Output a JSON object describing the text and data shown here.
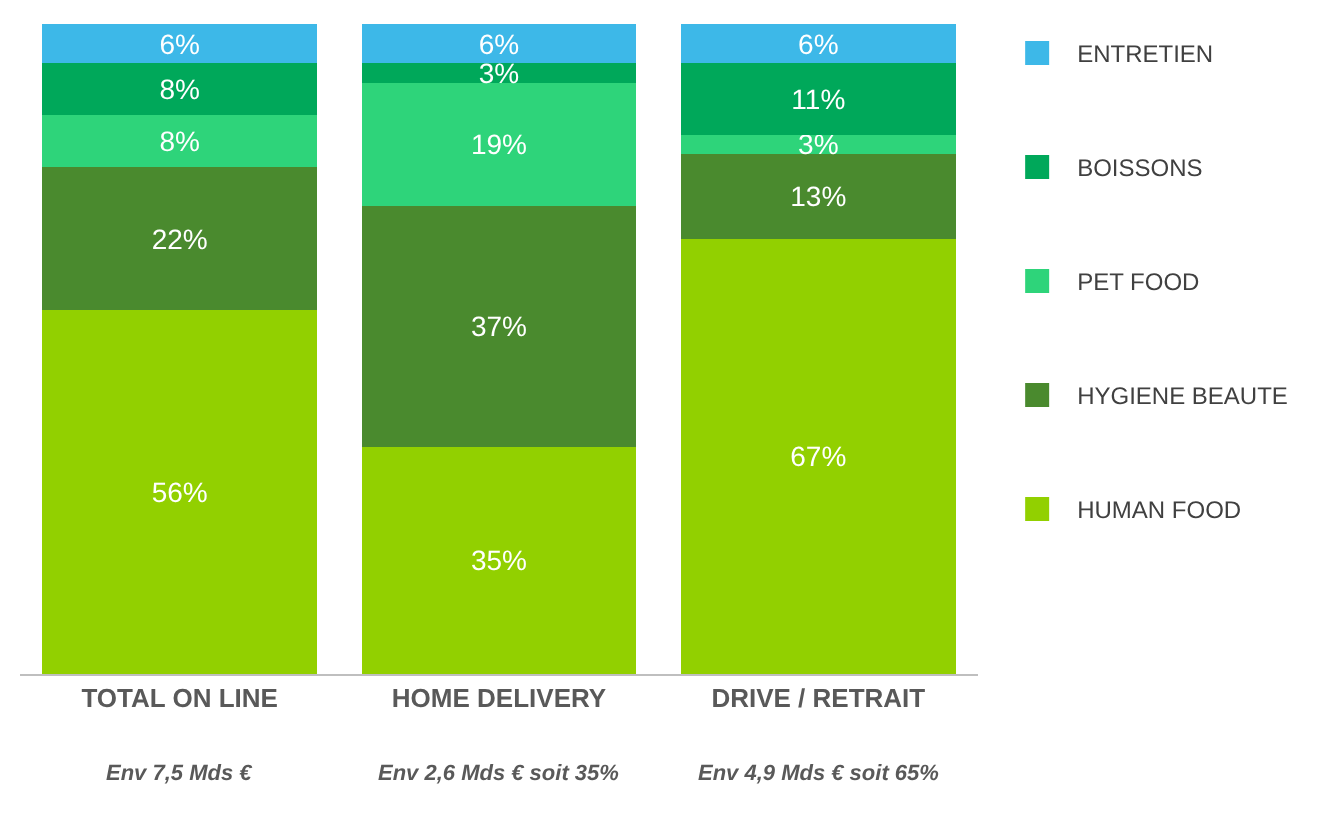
{
  "chart_data": {
    "type": "bar",
    "stacked": true,
    "legend": "right",
    "categories": [
      "TOTAL ON LINE",
      "HOME DELIVERY",
      "DRIVE / RETRAIT"
    ],
    "series": [
      {
        "name": "HUMAN FOOD",
        "color": "#92d000",
        "values": [
          56,
          35,
          67
        ],
        "value_labels": [
          "56%",
          "35%",
          "67%"
        ]
      },
      {
        "name": "HYGIENE BEAUTE",
        "color": "#4a8a2e",
        "values": [
          22,
          37,
          13
        ],
        "value_labels": [
          "22%",
          "37%",
          "13%"
        ]
      },
      {
        "name": "PET FOOD",
        "color": "#2ed47a",
        "values": [
          8,
          19,
          3
        ],
        "value_labels": [
          "8%",
          "19%",
          "3%"
        ]
      },
      {
        "name": "BOISSONS",
        "color": "#00a85a",
        "values": [
          8,
          3,
          11
        ],
        "value_labels": [
          "8%",
          "3%",
          "11%"
        ]
      },
      {
        "name": "ENTRETIEN",
        "color": "#3db8e8",
        "values": [
          6,
          6,
          6
        ],
        "value_labels": [
          "6%",
          "6%",
          "6%"
        ]
      }
    ],
    "annotations": [
      "Env 7,5 Mds €",
      "Env 2,6 Mds € soit 35%",
      "Env 4,9 Mds € soit 65%"
    ]
  }
}
